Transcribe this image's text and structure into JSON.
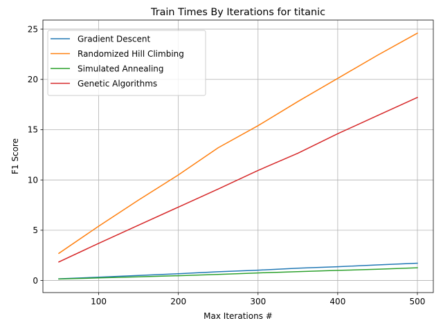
{
  "chart_data": {
    "type": "line",
    "title": "Train Times By Iterations for titanic",
    "xlabel": "Max Iterations #",
    "ylabel": "F1 Score",
    "xlim": [
      30,
      520
    ],
    "ylim": [
      -1.2,
      25.9
    ],
    "xticks": [
      100,
      200,
      300,
      400,
      500
    ],
    "yticks": [
      0,
      5,
      10,
      15,
      20,
      25
    ],
    "grid": true,
    "legend_position": "upper-left",
    "x": [
      50,
      100,
      150,
      200,
      250,
      300,
      350,
      400,
      450,
      500
    ],
    "series": [
      {
        "name": "Gradient Descent",
        "color": "#1f77b4",
        "values": [
          0.17,
          0.33,
          0.5,
          0.68,
          0.87,
          1.03,
          1.22,
          1.37,
          1.55,
          1.72
        ]
      },
      {
        "name": "Randomized Hill Climbing",
        "color": "#ff7f0e",
        "values": [
          2.7,
          5.4,
          8.0,
          10.5,
          13.2,
          15.4,
          17.8,
          20.1,
          22.4,
          24.6
        ]
      },
      {
        "name": "Simulated Annealing",
        "color": "#2ca02c",
        "values": [
          0.15,
          0.26,
          0.36,
          0.48,
          0.61,
          0.75,
          0.88,
          1.01,
          1.12,
          1.27
        ]
      },
      {
        "name": "Genetic Algorithms",
        "color": "#d62728",
        "values": [
          1.85,
          3.7,
          5.5,
          7.3,
          9.1,
          10.95,
          12.65,
          14.6,
          16.4,
          18.2
        ]
      }
    ]
  }
}
